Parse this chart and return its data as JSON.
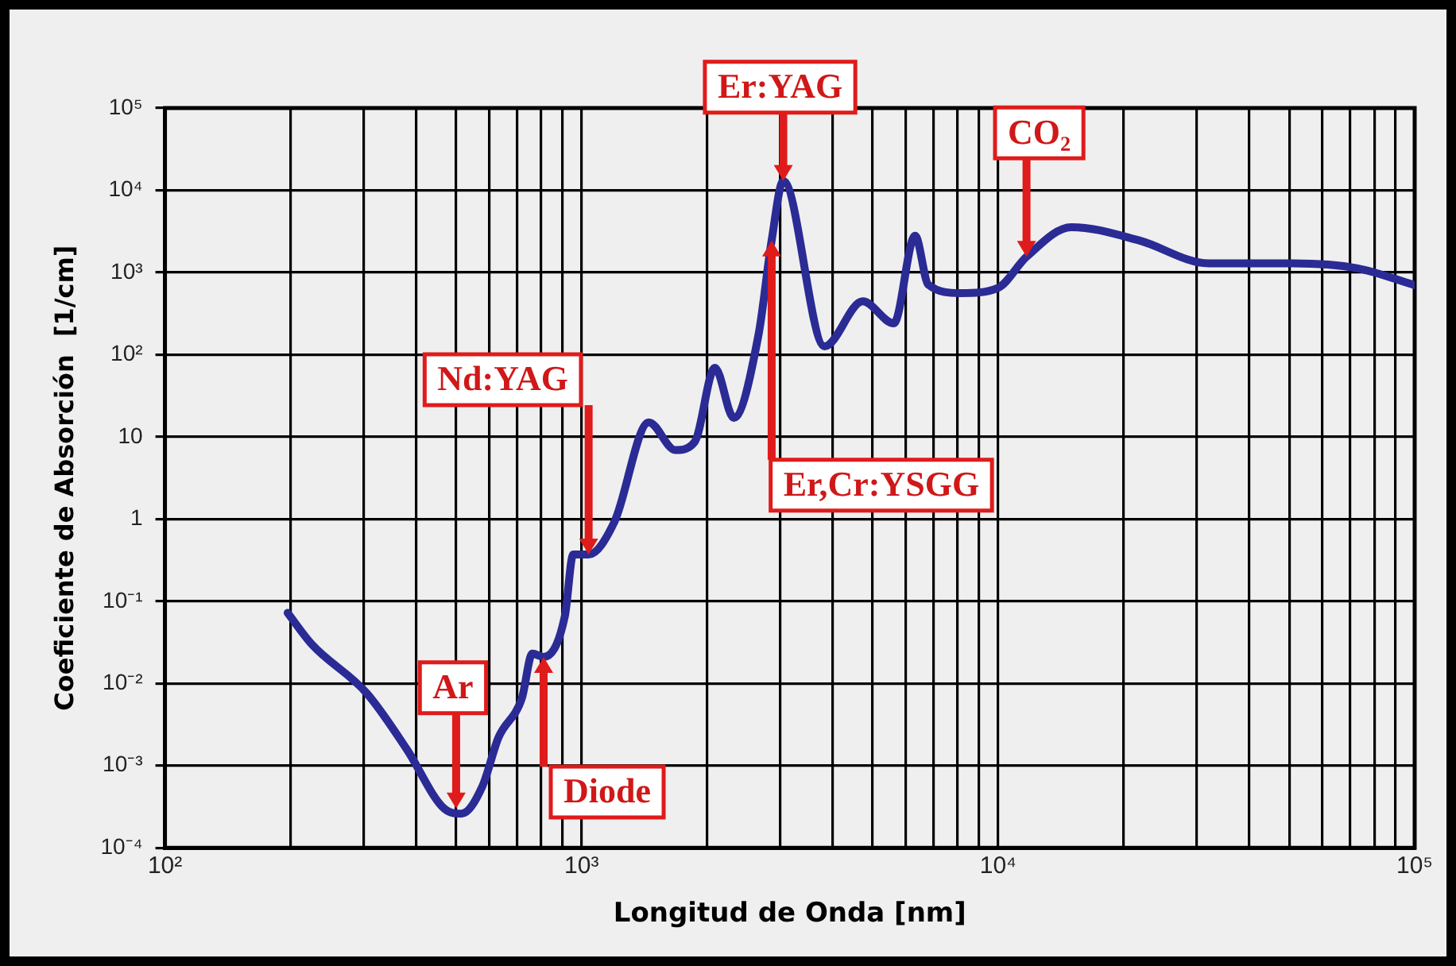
{
  "chart_data": {
    "type": "line",
    "xlabel": "Longitud de Onda [nm]",
    "ylabel": "Coeficiente de Absorción  [1/cm]",
    "log": "xy",
    "grid": true,
    "legend": false,
    "marker": "none",
    "line_style": "solid",
    "xlim": [
      100,
      100000
    ],
    "ylim": [
      0.0001,
      100000
    ],
    "xticks": [
      {
        "value": 100,
        "label": "10²"
      },
      {
        "value": 200,
        "label": null
      },
      {
        "value": 300,
        "label": null
      },
      {
        "value": 400,
        "label": null
      },
      {
        "value": 500,
        "label": null
      },
      {
        "value": 600,
        "label": null
      },
      {
        "value": 700,
        "label": null
      },
      {
        "value": 800,
        "label": null
      },
      {
        "value": 900,
        "label": null
      },
      {
        "value": 1000,
        "label": "10³"
      },
      {
        "value": 2000,
        "label": null
      },
      {
        "value": 3000,
        "label": null
      },
      {
        "value": 4000,
        "label": null
      },
      {
        "value": 5000,
        "label": null
      },
      {
        "value": 6000,
        "label": null
      },
      {
        "value": 7000,
        "label": null
      },
      {
        "value": 8000,
        "label": null
      },
      {
        "value": 9000,
        "label": null
      },
      {
        "value": 10000,
        "label": "10⁴"
      },
      {
        "value": 20000,
        "label": null
      },
      {
        "value": 30000,
        "label": null
      },
      {
        "value": 40000,
        "label": null
      },
      {
        "value": 50000,
        "label": null
      },
      {
        "value": 60000,
        "label": null
      },
      {
        "value": 70000,
        "label": null
      },
      {
        "value": 80000,
        "label": null
      },
      {
        "value": 90000,
        "label": null
      },
      {
        "value": 100000,
        "label": "10⁵"
      }
    ],
    "yticks": [
      {
        "value": 0.0001,
        "label": "10⁻⁴"
      },
      {
        "value": 0.001,
        "label": "10⁻³"
      },
      {
        "value": 0.01,
        "label": "10⁻²"
      },
      {
        "value": 0.1,
        "label": "10⁻¹"
      },
      1,
      10,
      {
        "value": 100,
        "label": "10²"
      },
      {
        "value": 1000,
        "label": "10³"
      },
      {
        "value": 10000,
        "label": "10⁴"
      },
      {
        "value": 100000,
        "label": "10⁵"
      }
    ],
    "series": [
      {
        "color": "#2b2b96",
        "x": [
          197,
          225,
          305,
          380,
          468,
          515,
          578,
          632,
          719,
          762,
          811,
          912,
          955,
          1040,
          1200,
          1450,
          1680,
          1870,
          2090,
          2320,
          2660,
          2860,
          3050,
          3830,
          4730,
          5620,
          6320,
          6800,
          8130,
          10000,
          11700,
          15000,
          21800,
          32000,
          51000,
          73000,
          100000
        ],
        "values": [
          0.072,
          0.03,
          0.0076,
          0.0016,
          0.0003,
          0.00026,
          0.00056,
          0.0022,
          0.0066,
          0.023,
          0.021,
          0.066,
          0.37,
          0.37,
          0.93,
          15,
          6.9,
          8.7,
          69,
          17,
          175,
          2450,
          13000,
          126,
          445,
          240,
          2800,
          710,
          560,
          650,
          1550,
          3560,
          2450,
          1290,
          1290,
          1120,
          700
        ]
      }
    ],
    "annotations": [
      {
        "text": "Ar",
        "x": 500,
        "y": 0.0003
      },
      {
        "text": "Diode",
        "x": 811,
        "y": 0.021
      },
      {
        "text": "Nd:YAG",
        "x": 1040,
        "y": 0.37
      },
      {
        "text": "Er:YAG",
        "x": 3050,
        "y": 13000
      },
      {
        "text": "Er,Cr:YSGG",
        "x": 2860,
        "y": 2450
      },
      {
        "text": "CO₂",
        "x": 11700,
        "y": 1550
      }
    ]
  }
}
